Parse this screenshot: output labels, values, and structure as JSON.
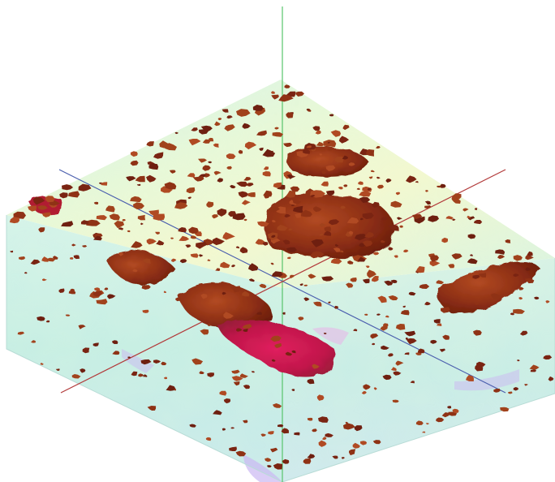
{
  "scene": {
    "subject": "3d-volume-render",
    "colors": {
      "background": "#ffffff",
      "top_face_light": "#d9f7ea",
      "top_face_mid": "#c6f0de",
      "top_face_warm": "#f1f7cf",
      "left_face": "#c9f0e6",
      "right_face": "#cfeee8",
      "lavender_patch": "#cbb8f2",
      "blob_dark": "#7a2412",
      "blob_mid": "#9a3a18",
      "blob_light": "#b5552a",
      "magenta_patch": "#cf1b52",
      "axis_vertical": "#58c46c",
      "axis_diag_blue": "#4b5fae",
      "axis_diag_red": "#b23a3a"
    }
  }
}
